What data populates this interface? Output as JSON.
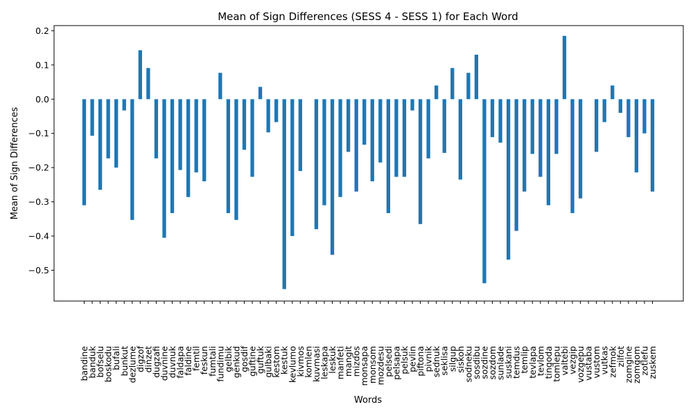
{
  "chart_data": {
    "type": "bar",
    "title": "Mean of Sign Differences (SESS 4 - SESS 1) for Each Word",
    "xlabel": "Words",
    "ylabel": "Mean of Sign Differences",
    "ylim": [
      -0.59,
      0.215
    ],
    "yticks": [
      0.2,
      0.1,
      0.0,
      -0.1,
      -0.2,
      -0.3,
      -0.4,
      -0.5
    ],
    "ytick_labels": [
      "0.2",
      "0.1",
      "0.0",
      "−0.1",
      "−0.2",
      "−0.3",
      "−0.4",
      "−0.5"
    ],
    "grid": false,
    "bar_color": "#1f77b4",
    "categories": [
      "bandine",
      "banduk",
      "bofselu",
      "boskodu",
      "bufali",
      "bunkut",
      "dezlume",
      "digzof",
      "dinzet",
      "dugzafi",
      "duvnine",
      "duvnuk",
      "faldapa",
      "faldine",
      "femtil",
      "feskun",
      "fumtali",
      "fundimu",
      "gelbik",
      "genkud",
      "gosdif",
      "guftine",
      "guftuk",
      "gulbaki",
      "kestom",
      "kestuk",
      "kevlumo",
      "kivmos",
      "komlen",
      "kuvmasi",
      "leskapa",
      "leskuk",
      "manfeti",
      "mangit",
      "mizdos",
      "monsapa",
      "monsom",
      "mozdesu",
      "pelsedi",
      "pelsapa",
      "pelsuk",
      "pevlin",
      "piftona",
      "pivnik",
      "sednuk",
      "seklisa",
      "silgup",
      "siskoh",
      "sodneku",
      "sosdibu",
      "sozdine",
      "sozdom",
      "sunlade",
      "suskani",
      "temdus",
      "temlip",
      "tevlapa",
      "tevlom",
      "tingoda",
      "tomlepu",
      "valtebi",
      "vezgip",
      "vozgepu",
      "vustaba",
      "vustom",
      "vutkas",
      "zefmok",
      "zilfot",
      "zomgine",
      "zomgom",
      "zotlefu",
      "zuskem"
    ],
    "values": [
      -0.31,
      -0.107,
      -0.265,
      -0.173,
      -0.2,
      -0.033,
      -0.353,
      0.143,
      0.091,
      -0.173,
      -0.405,
      -0.333,
      -0.207,
      -0.286,
      -0.214,
      -0.24,
      0.0,
      0.077,
      -0.333,
      -0.353,
      -0.148,
      -0.227,
      0.036,
      -0.097,
      -0.067,
      -0.555,
      -0.4,
      -0.21,
      0.0,
      -0.38,
      -0.31,
      -0.455,
      -0.286,
      -0.154,
      -0.27,
      -0.133,
      -0.24,
      -0.185,
      -0.333,
      -0.227,
      -0.227,
      -0.033,
      -0.365,
      -0.173,
      0.04,
      -0.157,
      0.091,
      -0.235,
      0.077,
      0.13,
      -0.538,
      -0.111,
      -0.127,
      -0.469,
      -0.385,
      -0.27,
      -0.16,
      -0.227,
      -0.31,
      -0.16,
      0.185,
      -0.333,
      -0.29,
      0.0,
      -0.154,
      -0.067,
      0.04,
      -0.04,
      -0.111,
      -0.214,
      -0.1,
      -0.27
    ]
  }
}
